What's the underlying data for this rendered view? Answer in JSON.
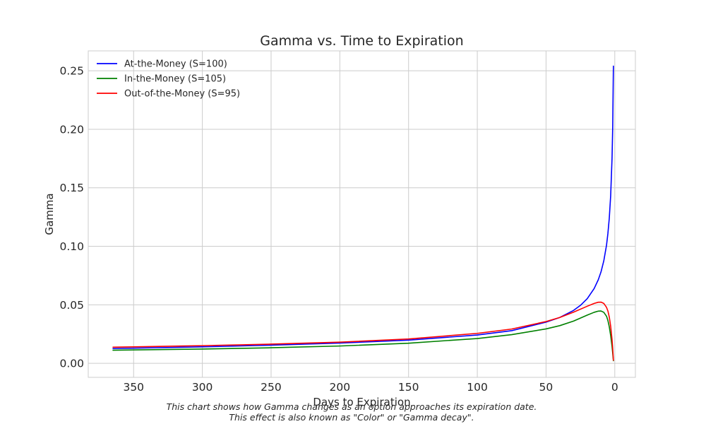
{
  "chart_data": {
    "type": "line",
    "title": "Gamma vs. Time to Expiration",
    "xlabel": "Days to Expiration",
    "ylabel": "Gamma",
    "xlim": [
      383,
      -15
    ],
    "ylim": [
      -0.012,
      0.267
    ],
    "x_reversed": true,
    "xticks": [
      350,
      300,
      250,
      200,
      150,
      100,
      50,
      0
    ],
    "xtick_labels": [
      "350",
      "300",
      "250",
      "200",
      "150",
      "100",
      "50",
      "0"
    ],
    "yticks": [
      0.0,
      0.05,
      0.1,
      0.15,
      0.2,
      0.25
    ],
    "ytick_labels": [
      "0.00",
      "0.05",
      "0.10",
      "0.15",
      "0.20",
      "0.25"
    ],
    "grid": true,
    "legend_position": "upper-left",
    "series": [
      {
        "name": "At-the-Money (S=100)",
        "color": "#0000ff",
        "points": [
          [
            365,
            0.0126
          ],
          [
            300,
            0.0141
          ],
          [
            250,
            0.0155
          ],
          [
            200,
            0.0173
          ],
          [
            150,
            0.0198
          ],
          [
            100,
            0.0242
          ],
          [
            75,
            0.0279
          ],
          [
            50,
            0.0352
          ],
          [
            40,
            0.0392
          ],
          [
            30,
            0.0452
          ],
          [
            25,
            0.0495
          ],
          [
            20,
            0.0553
          ],
          [
            15,
            0.0639
          ],
          [
            12,
            0.0714
          ],
          [
            10,
            0.0782
          ],
          [
            8,
            0.0875
          ],
          [
            6,
            0.101
          ],
          [
            5,
            0.111
          ],
          [
            4,
            0.124
          ],
          [
            3,
            0.143
          ],
          [
            2,
            0.175
          ],
          [
            1.5,
            0.202
          ],
          [
            1,
            0.254
          ]
        ]
      },
      {
        "name": "In-the-Money (S=105)",
        "color": "#008000",
        "points": [
          [
            365,
            0.0112
          ],
          [
            300,
            0.0122
          ],
          [
            250,
            0.0133
          ],
          [
            200,
            0.0148
          ],
          [
            150,
            0.0172
          ],
          [
            100,
            0.0212
          ],
          [
            75,
            0.0245
          ],
          [
            50,
            0.0294
          ],
          [
            40,
            0.0322
          ],
          [
            30,
            0.0361
          ],
          [
            20,
            0.0412
          ],
          [
            15,
            0.0436
          ],
          [
            12,
            0.0446
          ],
          [
            10,
            0.0447
          ],
          [
            8,
            0.0436
          ],
          [
            6,
            0.0402
          ],
          [
            5,
            0.0366
          ],
          [
            4,
            0.0312
          ],
          [
            3,
            0.0238
          ],
          [
            2,
            0.0145
          ],
          [
            1.5,
            0.0086
          ],
          [
            1,
            0.0022
          ]
        ]
      },
      {
        "name": "Out-of-the-Money (S=95)",
        "color": "#ff0000",
        "points": [
          [
            365,
            0.0138
          ],
          [
            300,
            0.0151
          ],
          [
            250,
            0.0164
          ],
          [
            200,
            0.0181
          ],
          [
            150,
            0.0208
          ],
          [
            100,
            0.0256
          ],
          [
            75,
            0.0293
          ],
          [
            50,
            0.0357
          ],
          [
            40,
            0.0392
          ],
          [
            30,
            0.0437
          ],
          [
            20,
            0.0488
          ],
          [
            15,
            0.0512
          ],
          [
            12,
            0.0522
          ],
          [
            10,
            0.0523
          ],
          [
            8,
            0.0512
          ],
          [
            6,
            0.0478
          ],
          [
            5,
            0.0447
          ],
          [
            4,
            0.0396
          ],
          [
            3,
            0.0318
          ],
          [
            2,
            0.0203
          ],
          [
            1.5,
            0.0126
          ],
          [
            1,
            0.0026
          ]
        ]
      }
    ]
  },
  "caption": {
    "line1": "This chart shows how Gamma changes as an option approaches its expiration date.",
    "line2": "This effect is also known as \"Color\" or \"Gamma decay\"."
  }
}
